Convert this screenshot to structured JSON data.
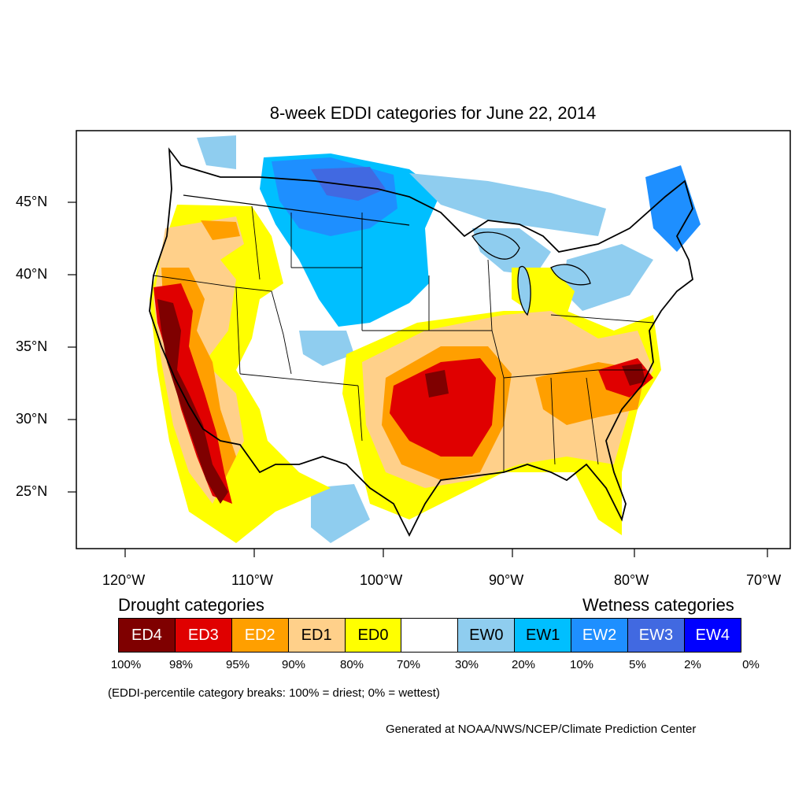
{
  "title": "8-week EDDI categories for June 22, 2014",
  "lat_labels": [
    "45°N",
    "40°N",
    "35°N",
    "30°N",
    "25°N"
  ],
  "lon_labels": [
    "120°W",
    "110°W",
    "100°W",
    "90°W",
    "80°W",
    "70°W"
  ],
  "legend": {
    "drought_heading": "Drought categories",
    "wetness_heading": "Wetness categories",
    "categories": [
      {
        "label": "ED4",
        "color": "#7f0000",
        "text_color": "#ffffff"
      },
      {
        "label": "ED3",
        "color": "#e00000",
        "text_color": "#ffffff"
      },
      {
        "label": "ED2",
        "color": "#ff9f00",
        "text_color": "#ffffff"
      },
      {
        "label": "ED1",
        "color": "#ffd08a",
        "text_color": "#000000"
      },
      {
        "label": "ED0",
        "color": "#ffff00",
        "text_color": "#000000"
      },
      {
        "label": "",
        "color": "#ffffff",
        "text_color": "#000000"
      },
      {
        "label": "EW0",
        "color": "#8fcdef",
        "text_color": "#000000"
      },
      {
        "label": "EW1",
        "color": "#00bfff",
        "text_color": "#000000"
      },
      {
        "label": "EW2",
        "color": "#1e8fff",
        "text_color": "#ffffff"
      },
      {
        "label": "EW3",
        "color": "#4169e1",
        "text_color": "#ffffff"
      },
      {
        "label": "EW4",
        "color": "#0000ff",
        "text_color": "#ffffff"
      }
    ],
    "breaks": [
      "100%",
      "98%",
      "95%",
      "90%",
      "80%",
      "70%",
      "30%",
      "20%",
      "10%",
      "5%",
      "2%",
      "0%"
    ]
  },
  "note": "(EDDI-percentile category breaks: 100% = driest; 0% = wettest)",
  "credit": "Generated at NOAA/NWS/NCEP/Climate Prediction Center"
}
